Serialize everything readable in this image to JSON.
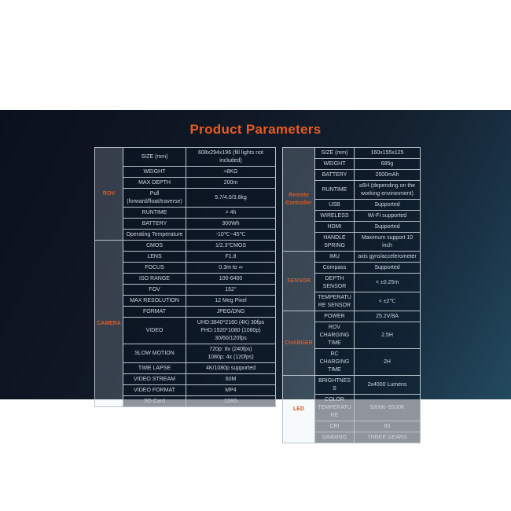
{
  "title": "Product Parameters",
  "colors": {
    "accent_orange": "#e95b20",
    "category_text_orange": "#d85a24",
    "band_dark": "#0b111c",
    "band_teal": "#234a5f",
    "cell_bg": "#1b2734",
    "category_cell_bg": "#3d4e5d",
    "border": "#b9c3cc",
    "cell_text": "#ccd6df",
    "page_bg": "#ffffff"
  },
  "left_table": {
    "sections": [
      {
        "category": "ROV",
        "rows": [
          {
            "label": "SIZE (mm)",
            "value": "608x294x196 (fill lights not included)"
          },
          {
            "label": "WEIGHT",
            "value": "≈8KG"
          },
          {
            "label": "MAX DEPTH",
            "value": "200m"
          },
          {
            "label": "Pull\n(forward/float/traverse)",
            "value": "5.7/4.0/3.6kg"
          },
          {
            "label": "RUNTIME",
            "value": "> 4h"
          },
          {
            "label": "BATTERY",
            "value": "300Wh"
          },
          {
            "label": "Operating Temperature",
            "value": "-10℃~45℃"
          }
        ]
      },
      {
        "category": "CAMERA",
        "rows": [
          {
            "label": "CMOS",
            "value": "1/2.3\"CMOS"
          },
          {
            "label": "LENS",
            "value": "F1.8"
          },
          {
            "label": "FOCUS",
            "value": "0.3m to ∞"
          },
          {
            "label": "ISO RANGE",
            "value": "100-6400"
          },
          {
            "label": "FOV",
            "value": "152°"
          },
          {
            "label": "MAX RESOLUTION",
            "value": "12 Meg Pixel"
          },
          {
            "label": "FORMAT",
            "value": "JPEG/DNG"
          },
          {
            "label": "VIDEO",
            "value": "UHD:3840*2160 (4K) 30fps\nFHD:1920*1080 (1080p)\n30/60/120fps"
          },
          {
            "label": "SLOW MOTION",
            "value": "720p: 8x (240fps)\n1080p: 4x (120fps)"
          },
          {
            "label": "TIME LAPSE",
            "value": "4K/1080p supported"
          },
          {
            "label": "VIDEO STREAM",
            "value": "60M"
          },
          {
            "label": "VIDEO FORMAT",
            "value": "MP4"
          },
          {
            "label": "SD Card",
            "value": "128G"
          }
        ]
      }
    ]
  },
  "right_table": {
    "sections": [
      {
        "category": "Remote Controller",
        "rows": [
          {
            "label": "SIZE (mm)",
            "value": "160x155x125"
          },
          {
            "label": "WEIGHT",
            "value": "685g"
          },
          {
            "label": "BATTERY",
            "value": "2500mAh"
          },
          {
            "label": "RUNTIME",
            "value": "≥6H (depending on the working environment)"
          },
          {
            "label": "USB",
            "value": "Supported"
          },
          {
            "label": "WIRELESS",
            "value": "Wi-Fi supported"
          },
          {
            "label": "HDMI",
            "value": "Supported"
          },
          {
            "label": "HANDLE SPRING",
            "value": "Maximum support 10 inch"
          }
        ]
      },
      {
        "category": "SENSOR",
        "rows": [
          {
            "label": "IMU",
            "value": "axis gyro/accelerometer"
          },
          {
            "label": "Compass",
            "value": "Supported"
          },
          {
            "label": "DEPTH SENSOR",
            "value": "< ±0.25m"
          },
          {
            "label": "TEMPERATURE SENSOR",
            "value": "< ±2℃"
          }
        ]
      },
      {
        "category": "CHARGER",
        "rows": [
          {
            "label": "POWER",
            "value": "25.2V/8A"
          },
          {
            "label": "ROV CHARGING TIME",
            "value": "2.5H"
          },
          {
            "label": "RC CHARGING TIME",
            "value": "2H"
          }
        ]
      },
      {
        "category": "LED",
        "rows": [
          {
            "label": "BRIGHTNESS",
            "value": "2x4000 Lumens"
          },
          {
            "label": "COLOR TEMPERATURE",
            "value": "5000K~5500K"
          },
          {
            "label": "CRI",
            "value": "85"
          },
          {
            "label": "DIMMING",
            "value": "THREE GEARS"
          }
        ]
      }
    ]
  }
}
